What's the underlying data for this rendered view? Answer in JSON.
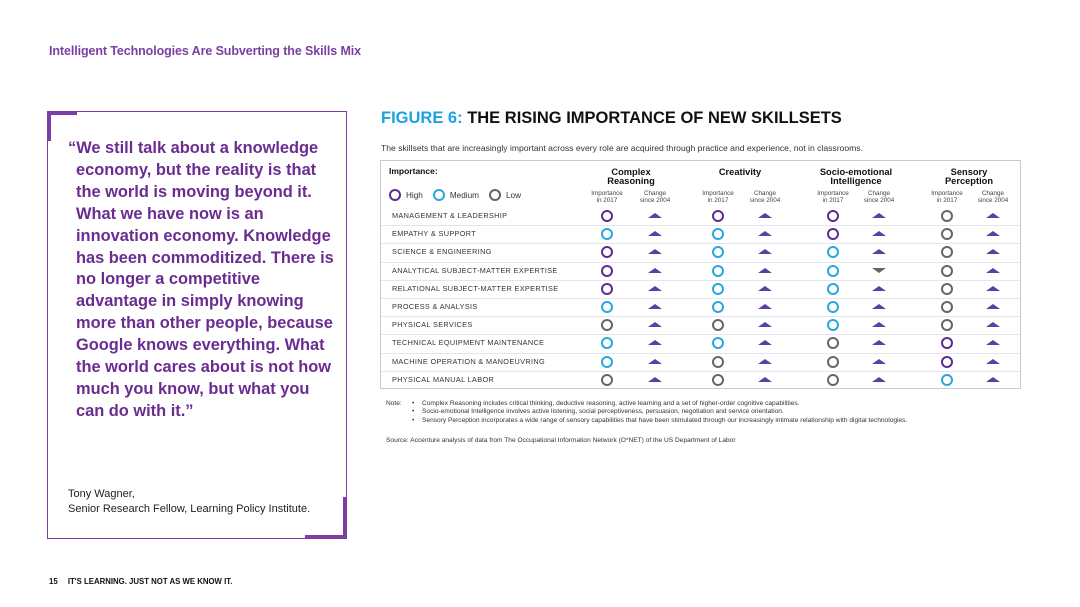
{
  "header": {
    "title": "Intelligent Technologies Are Subverting the Skills Mix"
  },
  "quote": {
    "text": "“We still talk about a knowledge economy, but the reality is that the world is moving beyond it. What we have now is an innovation economy. Knowledge has been commoditized. There is no longer a competitive advantage in simply knowing more than other people, because Google knows everything. What the world cares about is not how much you know, but what you can do with it.”",
    "author_name": "Tony Wagner,",
    "author_title": "Senior Research Fellow, Learning Policy Institute."
  },
  "figure": {
    "title_prefix": "FIGURE 6:",
    "title": "THE RISING IMPORTANCE OF NEW SKILLSETS",
    "subtitle": "The skillsets that are increasingly important across every role are acquired through practice and experience, not in classrooms.",
    "importance_label": "Importance:",
    "legend": [
      {
        "label": "High",
        "level": "high"
      },
      {
        "label": "Medium",
        "level": "medium"
      },
      {
        "label": "Low",
        "level": "low"
      }
    ],
    "colors": {
      "high": "#5e2b8f",
      "medium": "#2aa6dc",
      "low": "#666666",
      "arrow_up": "#5e3ea0",
      "arrow_down": "#666666"
    },
    "groups": [
      {
        "name_line1": "Complex",
        "name_line2": "Reasoning"
      },
      {
        "name_line1": "Creativity",
        "name_line2": ""
      },
      {
        "name_line1": "Socio-emotional",
        "name_line2": "Intelligence"
      },
      {
        "name_line1": "Sensory",
        "name_line2": "Perception"
      }
    ],
    "subheaders": {
      "importance_line1": "Importance",
      "importance_line2": "in 2017",
      "change_line1": "Change",
      "change_line2": "since 2004"
    },
    "rows": [
      {
        "label": "MANAGEMENT & LEADERSHIP",
        "cells": [
          [
            "high",
            "up"
          ],
          [
            "high",
            "up"
          ],
          [
            "high",
            "up"
          ],
          [
            "low",
            "up"
          ]
        ]
      },
      {
        "label": "EMPATHY & SUPPORT",
        "cells": [
          [
            "medium",
            "up"
          ],
          [
            "medium",
            "up"
          ],
          [
            "high",
            "up"
          ],
          [
            "low",
            "up"
          ]
        ]
      },
      {
        "label": "SCIENCE & ENGINEERING",
        "cells": [
          [
            "high",
            "up"
          ],
          [
            "medium",
            "up"
          ],
          [
            "medium",
            "up"
          ],
          [
            "low",
            "up"
          ]
        ]
      },
      {
        "label": "ANALYTICAL SUBJECT-MATTER EXPERTISE",
        "cells": [
          [
            "high",
            "up"
          ],
          [
            "medium",
            "up"
          ],
          [
            "medium",
            "down"
          ],
          [
            "low",
            "up"
          ]
        ]
      },
      {
        "label": "RELATIONAL SUBJECT-MATTER EXPERTISE",
        "cells": [
          [
            "high",
            "up"
          ],
          [
            "medium",
            "up"
          ],
          [
            "medium",
            "up"
          ],
          [
            "low",
            "up"
          ]
        ]
      },
      {
        "label": "PROCESS & ANALYSIS",
        "cells": [
          [
            "medium",
            "up"
          ],
          [
            "medium",
            "up"
          ],
          [
            "medium",
            "up"
          ],
          [
            "low",
            "up"
          ]
        ]
      },
      {
        "label": "PHYSICAL SERVICES",
        "cells": [
          [
            "low",
            "up"
          ],
          [
            "low",
            "up"
          ],
          [
            "medium",
            "up"
          ],
          [
            "low",
            "up"
          ]
        ]
      },
      {
        "label": "TECHNICAL EQUIPMENT MAINTENANCE",
        "cells": [
          [
            "medium",
            "up"
          ],
          [
            "medium",
            "up"
          ],
          [
            "low",
            "up"
          ],
          [
            "high",
            "up"
          ]
        ]
      },
      {
        "label": "MACHINE OPERATION & MANOEUVRING",
        "cells": [
          [
            "medium",
            "up"
          ],
          [
            "low",
            "up"
          ],
          [
            "low",
            "up"
          ],
          [
            "high",
            "up"
          ]
        ]
      },
      {
        "label": "PHYSICAL MANUAL LABOR",
        "cells": [
          [
            "low",
            "up"
          ],
          [
            "low",
            "up"
          ],
          [
            "low",
            "up"
          ],
          [
            "medium",
            "up"
          ]
        ]
      }
    ],
    "note_label": "Note:",
    "notes": [
      "Complex Reasoning includes critical thinking, deductive reasoning, active learning and a set of higher-order cognitive capabilities.",
      "Socio-emotional Intelligence involves active listening, social perceptiveness, persuasion, negotiation and service orientation.",
      "Sensory Perception incorporates a wide range of sensory capabilities that have been stimulated through our increasingly intimate relationship with digital technologies."
    ],
    "source": "Source: Accenture analysis of data from The Occupational Information Network (O*NET) of the US Department of Labor"
  },
  "footer": {
    "page_number": "15",
    "text": "IT'S LEARNING. JUST NOT AS WE KNOW IT."
  }
}
